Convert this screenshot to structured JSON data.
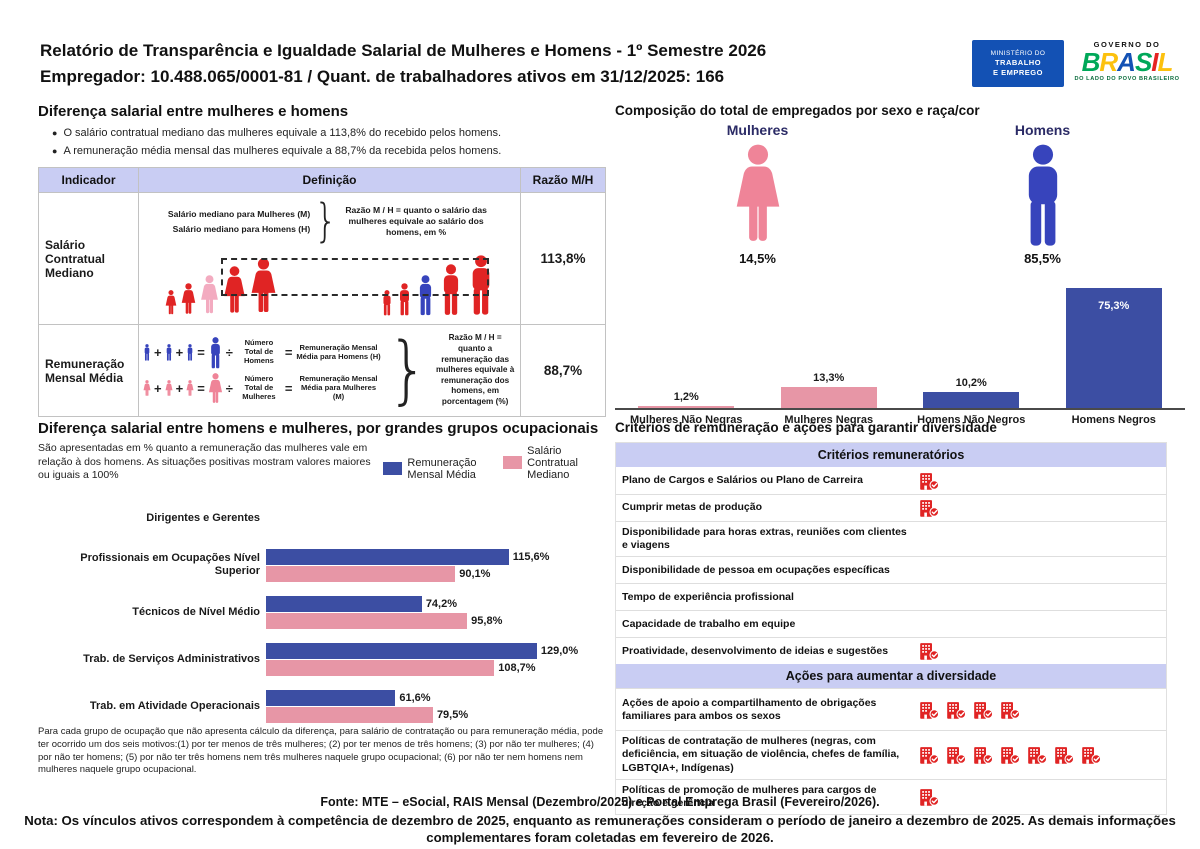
{
  "palette": {
    "blue_bar": "#3C4EA3",
    "pink_bar": "#E796A6",
    "male_blue": "#3744BC",
    "female_pink": "#EF8498",
    "highlight_pink": "#F3ABC0",
    "icon_red": "#E02424",
    "header_lavender": "#C9CDF3",
    "navy_label": "#2B2B66",
    "ministry_blue": "#1351B4"
  },
  "header": {
    "title_line1": "Relatório de Transparência e Igualdade Salarial de Mulheres e Homens - 1º Semestre 2026",
    "title_line2": "Empregador: 10.488.065/0001-81 / Quant. de trabalhadores ativos em 31/12/2025: 166",
    "ministry_logo": {
      "line1": "MINISTÉRIO DO",
      "line2": "TRABALHO",
      "line3": "E EMPREGO"
    },
    "gov_logo": {
      "top": "GOVERNO DO",
      "brand": "BRASIL",
      "tagline": "DO LADO DO POVO BRASILEIRO"
    }
  },
  "salary_diff": {
    "title": "Diferença salarial entre mulheres e homens",
    "bullets": [
      "O salário contratual mediano das mulheres equivale a 113,8% do recebido pelos homens.",
      "A remuneração média mensal das mulheres equivale a 88,7% da recebida pelos homens."
    ],
    "table": {
      "headers": [
        "Indicador",
        "Definição",
        "Razão M/H"
      ],
      "row1": {
        "indicator": "Salário Contratual Mediano",
        "def_line1": "Salário mediano para Mulheres (M)",
        "def_line2": "Salário mediano para Homens (H)",
        "def_note": "Razão M / H = quanto o salário das mulheres equivale ao salário dos homens, em %",
        "ratio": "113,8%"
      },
      "row2": {
        "indicator": "Remuneração Mensal Média",
        "men_divisor": "Número Total de Homens",
        "men_result": "Remuneração Mensal Média para Homens (H)",
        "women_divisor": "Número Total de Mulheres",
        "women_result": "Remuneração Mensal Média para Mulheres (M)",
        "def_note": "Razão M / H = quanto a remuneração das mulheres equivale à remuneração dos homens, em porcentagem (%)",
        "ratio": "88,7%",
        "plus": "+",
        "equals": "=",
        "divide": "÷"
      }
    }
  },
  "composition": {
    "title": "Composição do total de empregados por sexo e raça/cor",
    "women_label": "Mulheres",
    "women_value": "14,5%",
    "men_label": "Homens",
    "men_value": "85,5%"
  },
  "occupational": {
    "title": "Diferença salarial entre homens e mulheres, por grandes grupos ocupacionais",
    "subtitle": "São apresentadas em % quanto a remuneração das mulheres vale em relação à dos homens. As situações positivas mostram valores maiores ou iguais a 100%",
    "footnote": "Para cada grupo de ocupação que não apresenta cálculo da diferença, para salário de contratação ou para remuneração média, pode ter ocorrido um dos seis motivos:(1) por ter menos de três mulheres; (2) por ter menos de três homens; (3) por não ter mulheres; (4) por não ter homens; (5) por não ter três homens nem três mulheres naquele grupo ocupacional; (6) por não ter nem homens nem mulheres naquele grupo ocupacional."
  },
  "chart_data": [
    {
      "type": "bar",
      "title": "Composição do total de empregados por sexo e raça/cor",
      "categories": [
        "Mulheres Não Negras",
        "Mulheres Negras",
        "Homens Não Negros",
        "Homens Negros"
      ],
      "values": [
        1.2,
        13.3,
        10.2,
        75.3
      ],
      "value_labels": [
        "1,2%",
        "13,3%",
        "10,2%",
        "75,3%"
      ],
      "bar_colors": [
        "#E796A6",
        "#E796A6",
        "#3C4EA3",
        "#3C4EA3"
      ],
      "summary_values": {
        "mulheres": 14.5,
        "homens": 85.5
      },
      "ylim": [
        0,
        80
      ],
      "grid": false,
      "legend_position": "none"
    },
    {
      "type": "bar",
      "orientation": "horizontal",
      "title": "Diferença salarial entre homens e mulheres, por grandes grupos ocupacionais",
      "categories": [
        "Dirigentes e Gerentes",
        "Profissionais em Ocupações Nível Superior",
        "Técnicos de Nível Médio",
        "Trab. de Serviços Administrativos",
        "Trab. em Atividade Operacionais"
      ],
      "series": [
        {
          "name": "Remuneração Mensal Média",
          "color": "#3C4EA3",
          "values": [
            null,
            115.6,
            74.2,
            129.0,
            61.6
          ],
          "labels": [
            "",
            "115,6%",
            "74,2%",
            "129,0%",
            "61,6%"
          ]
        },
        {
          "name": "Salário Contratual Mediano",
          "color": "#E796A6",
          "values": [
            null,
            90.1,
            95.8,
            108.7,
            79.5
          ],
          "labels": [
            "",
            "90,1%",
            "95,8%",
            "108,7%",
            "79,5%"
          ]
        }
      ],
      "xlim": [
        0,
        140
      ],
      "grid": false,
      "legend_position": "top"
    }
  ],
  "diversity": {
    "title": "Critérios de remuneração e ações para garantir diversidade",
    "criteria_header": "Critérios remuneratórios",
    "criteria_rows": [
      {
        "label": "Plano de Cargos e Salários ou Plano de Carreira",
        "count": 1
      },
      {
        "label": "Cumprir metas de produção",
        "count": 1
      },
      {
        "label": "Disponibilidade para horas extras, reuniões com clientes e viagens",
        "count": 0
      },
      {
        "label": "Disponibilidade de pessoa em ocupações específicas",
        "count": 0
      },
      {
        "label": "Tempo de experiência profissional",
        "count": 0
      },
      {
        "label": "Capacidade de trabalho em equipe",
        "count": 0
      },
      {
        "label": "Proatividade, desenvolvimento de ideias e sugestões",
        "count": 1
      }
    ],
    "actions_header": "Ações para aumentar a diversidade",
    "actions_rows": [
      {
        "label": "Ações de apoio a compartilhamento de obrigações familiares para ambos os sexos",
        "count": 4
      },
      {
        "label": "Políticas de contratação de mulheres (negras, com deficiência, em situação de violência, chefes de família, LGBTQIA+, Indígenas)",
        "count": 7
      },
      {
        "label": "Políticas de promoção de mulheres para cargos de direção e gerência",
        "count": 1
      }
    ]
  },
  "footer": {
    "fonte": "Fonte: MTE – eSocial, RAIS Mensal (Dezembro/2025) e Portal Emprega Brasil (Fevereiro/2026).",
    "nota": "Nota: Os vínculos ativos correspondem à competência de dezembro de 2025, enquanto as remunerações consideram o período de janeiro a dezembro de 2025. As demais informações complementares foram coletadas em fevereiro de 2026."
  }
}
